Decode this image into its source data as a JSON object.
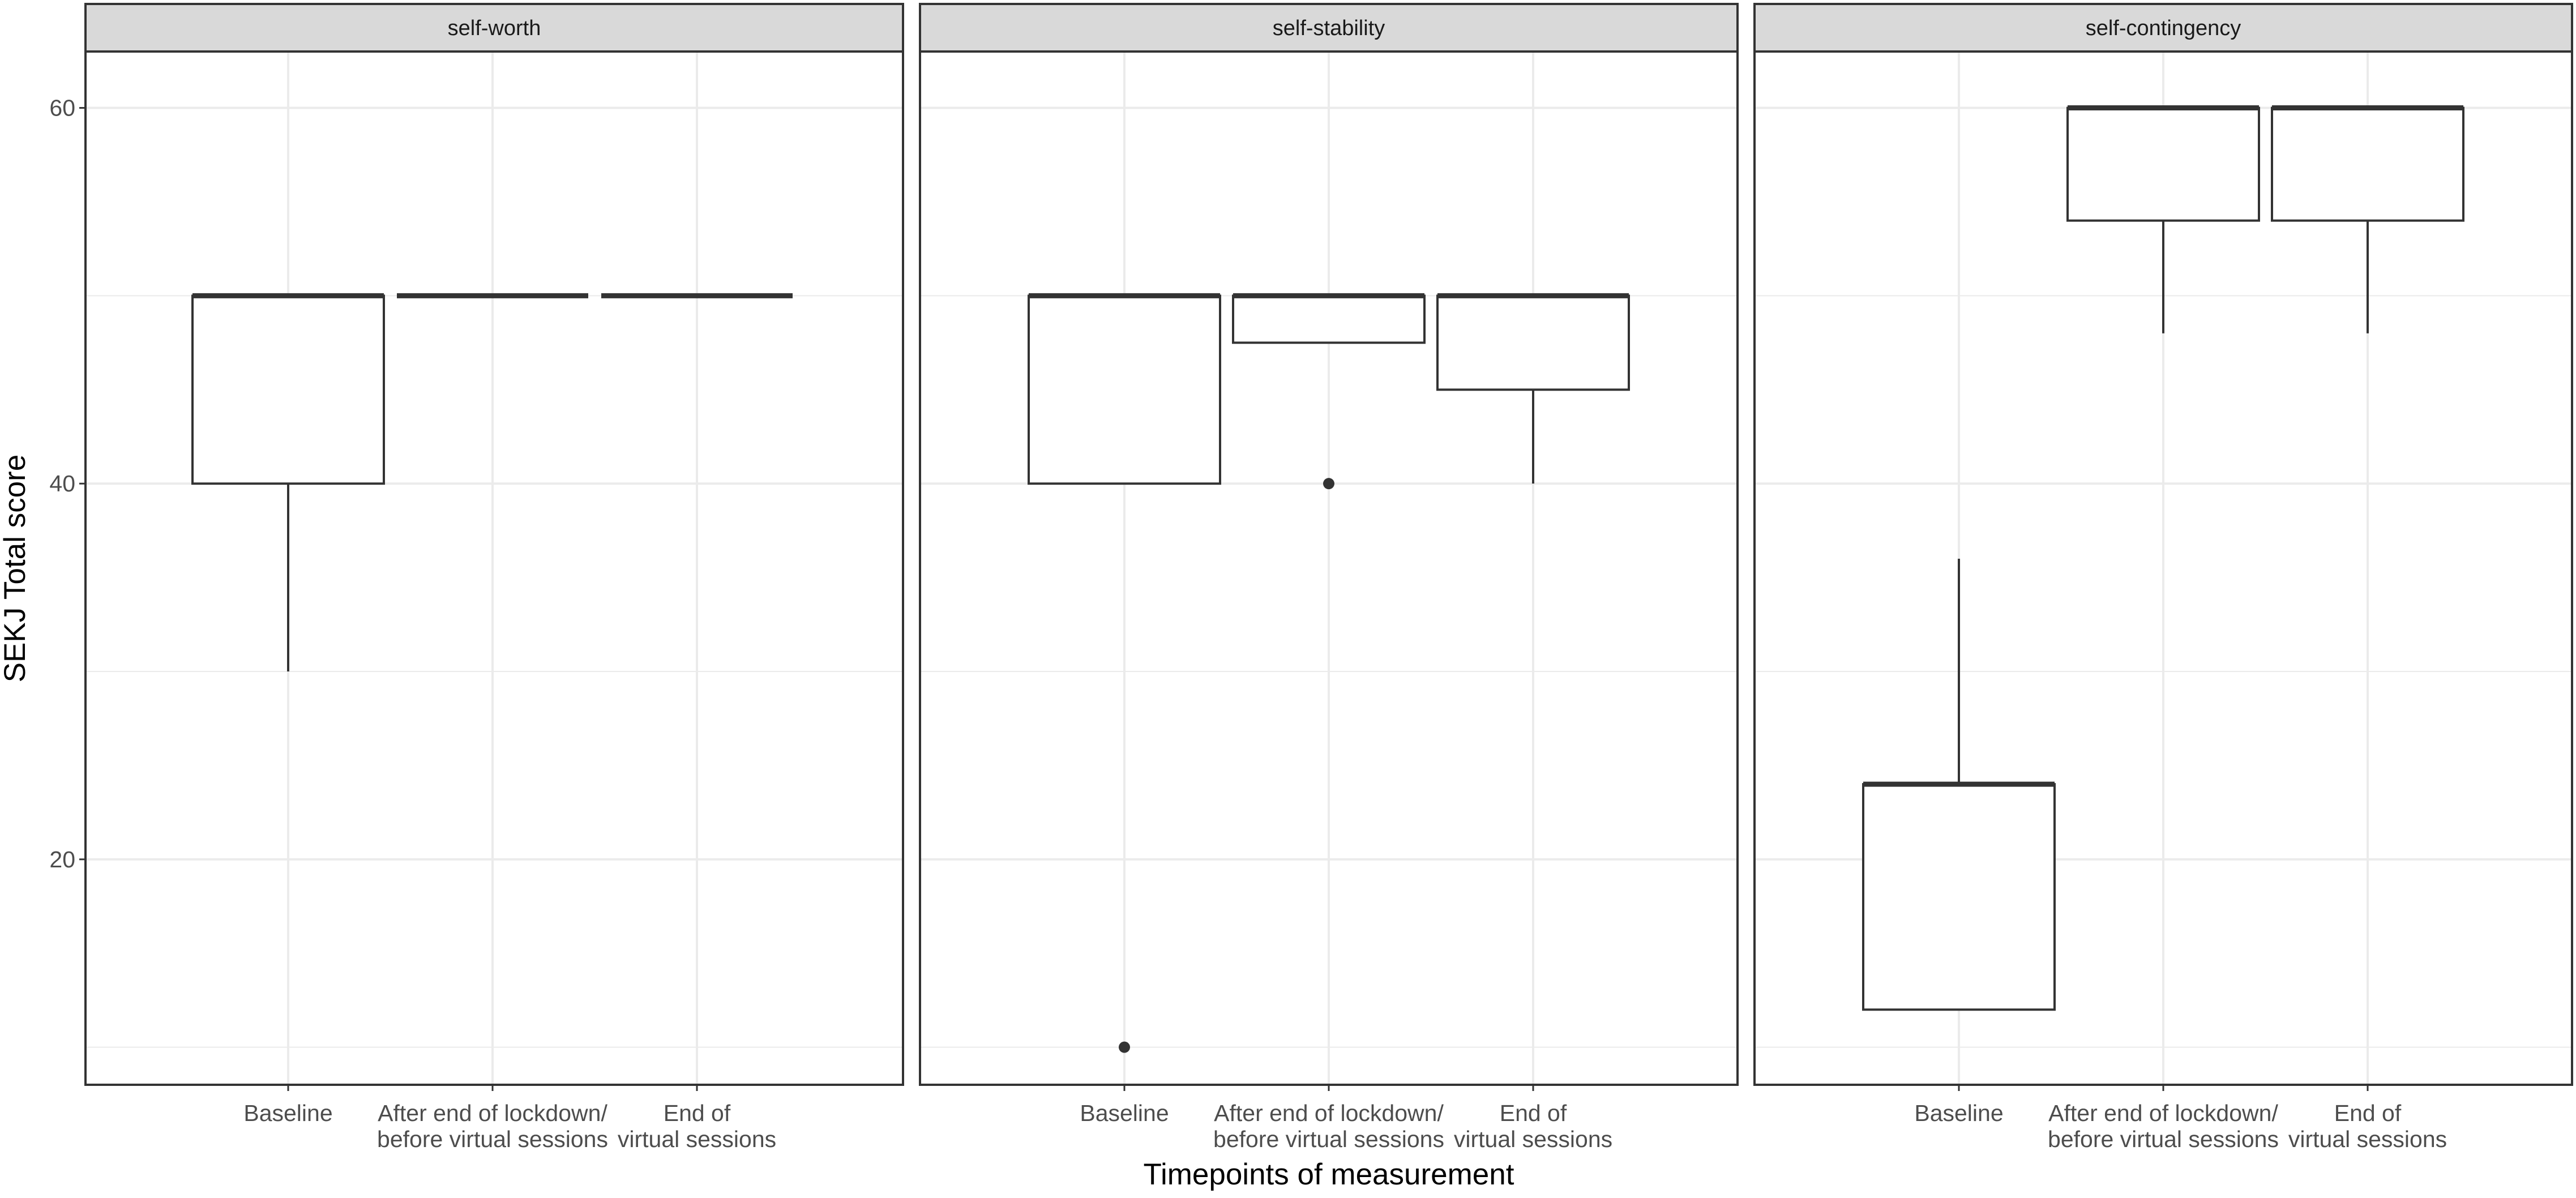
{
  "chart_data": {
    "type": "box",
    "ylabel": "SEKJ Total score",
    "xlabel": "Timepoints of measurement",
    "ylim": [
      8,
      63
    ],
    "y_ticks": [
      20,
      40,
      60
    ],
    "categories": [
      [
        "Baseline"
      ],
      [
        "After end of lockdown/",
        "before virtual sessions"
      ],
      [
        "End of",
        "virtual sessions"
      ]
    ],
    "grid": true,
    "colors": {
      "box_stroke": "#333333",
      "strip_fill": "#d9d9d9",
      "grid": "#ebebeb"
    },
    "panels": [
      {
        "name": "self-worth",
        "boxes": [
          {
            "q1": 40,
            "median": 50,
            "q3": 50,
            "whisker_low": 30,
            "whisker_high": 50,
            "outliers": []
          },
          {
            "q1": 50,
            "median": 50,
            "q3": 50,
            "whisker_low": 50,
            "whisker_high": 50,
            "outliers": []
          },
          {
            "q1": 50,
            "median": 50,
            "q3": 50,
            "whisker_low": 50,
            "whisker_high": 50,
            "outliers": []
          }
        ]
      },
      {
        "name": "self-stability",
        "boxes": [
          {
            "q1": 40,
            "median": 50,
            "q3": 50,
            "whisker_low": 40,
            "whisker_high": 50,
            "outliers": [
              10
            ]
          },
          {
            "q1": 47.5,
            "median": 50,
            "q3": 50,
            "whisker_low": 47.5,
            "whisker_high": 50,
            "outliers": [
              40
            ]
          },
          {
            "q1": 45,
            "median": 50,
            "q3": 50,
            "whisker_low": 40,
            "whisker_high": 50,
            "outliers": []
          }
        ]
      },
      {
        "name": "self-contingency",
        "boxes": [
          {
            "q1": 12,
            "median": 24,
            "q3": 24,
            "whisker_low": 12,
            "whisker_high": 36,
            "outliers": []
          },
          {
            "q1": 54,
            "median": 60,
            "q3": 60,
            "whisker_low": 48,
            "whisker_high": 60,
            "outliers": []
          },
          {
            "q1": 54,
            "median": 60,
            "q3": 60,
            "whisker_low": 48,
            "whisker_high": 60,
            "outliers": []
          }
        ]
      }
    ]
  }
}
